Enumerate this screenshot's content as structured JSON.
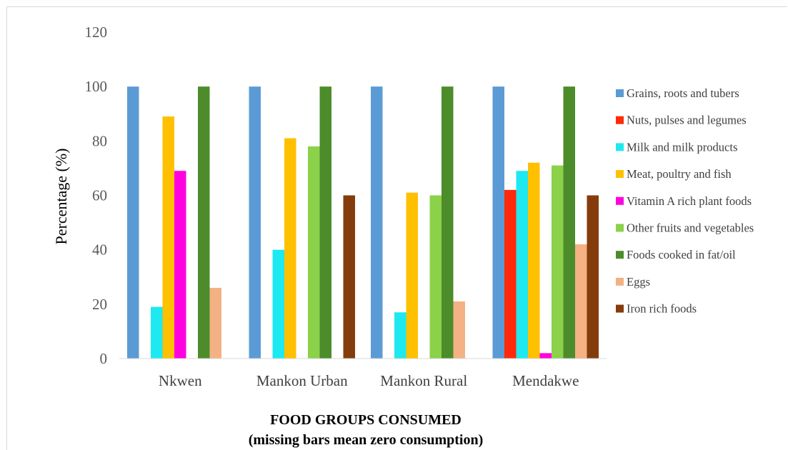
{
  "chart_data": {
    "type": "bar",
    "categories": [
      "Nkwen",
      "Mankon Urban",
      "Mankon Rural",
      "Mendakwe"
    ],
    "series": [
      {
        "name": "Grains, roots and tubers",
        "color": "#5b9bd5",
        "values": [
          100,
          100,
          100,
          100
        ]
      },
      {
        "name": "Nuts, pulses and legumes",
        "color": "#ff2a0a",
        "values": [
          0,
          0,
          0,
          62
        ]
      },
      {
        "name": "Milk and milk products",
        "color": "#1ee9f0",
        "values": [
          19,
          40,
          17,
          69
        ]
      },
      {
        "name": "Meat, poultry and fish",
        "color": "#ffc000",
        "values": [
          89,
          81,
          61,
          72
        ]
      },
      {
        "name": "Vitamin A rich plant foods",
        "color": "#ff00e0",
        "values": [
          69,
          0,
          0,
          2
        ]
      },
      {
        "name": "Other fruits and vegetables",
        "color": "#8bd149",
        "values": [
          0,
          78,
          60,
          71
        ]
      },
      {
        "name": "Foods cooked in fat/oil",
        "color": "#4c8c2b",
        "values": [
          100,
          100,
          100,
          100
        ]
      },
      {
        "name": "Eggs",
        "color": "#f4b183",
        "values": [
          26,
          0,
          21,
          42
        ]
      },
      {
        "name": "Iron rich foods",
        "color": "#843c0c",
        "values": [
          0,
          60,
          0,
          60
        ]
      }
    ],
    "ylim": [
      0,
      120
    ],
    "yticks": [
      0,
      20,
      40,
      60,
      80,
      100,
      120
    ],
    "ylabel": "Percentage (%)",
    "xlabel_line1": "FOOD GROUPS CONSUMED",
    "xlabel_line2": "(missing bars mean zero consumption)",
    "legend_position": "right",
    "grid": false
  }
}
